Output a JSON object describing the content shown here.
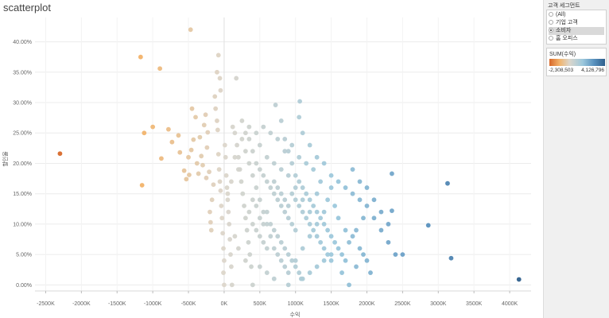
{
  "title": "scatterplot",
  "filter": {
    "title": "고객 세그먼트",
    "options": [
      {
        "label": "(All)",
        "selected": false
      },
      {
        "label": "기업 고객",
        "selected": false
      },
      {
        "label": "소비자",
        "selected": true
      },
      {
        "label": "홈 오피스",
        "selected": false
      }
    ]
  },
  "color_legend": {
    "title": "SUM(수익)",
    "min_label": "-2,308,503",
    "max_label": "4,126,796"
  },
  "chart_data": {
    "type": "scatter",
    "xlabel": "수익",
    "ylabel": "할인율",
    "xlim": [
      -2650000,
      4300000
    ],
    "ylim": [
      -0.01,
      0.44
    ],
    "x_ticks": [
      -2500,
      -2000,
      -1500,
      -1000,
      -500,
      0,
      500,
      1000,
      1500,
      2000,
      2500,
      3000,
      3500,
      4000
    ],
    "x_tick_labels": [
      "-2500K",
      "-2000K",
      "-1500K",
      "-1000K",
      "-500K",
      "0K",
      "500K",
      "1000K",
      "1500K",
      "2000K",
      "2500K",
      "3000K",
      "3500K",
      "4000K"
    ],
    "y_ticks": [
      0,
      0.05,
      0.1,
      0.15,
      0.2,
      0.25,
      0.3,
      0.35,
      0.4
    ],
    "y_tick_labels": [
      "0.00%",
      "5.00%",
      "10.00%",
      "15.00%",
      "20.00%",
      "25.00%",
      "30.00%",
      "35.00%",
      "40.00%"
    ],
    "grid": true,
    "color_scale": {
      "min": -2308503,
      "max": 4126796,
      "stops": [
        "#d8682a",
        "#f2b36a",
        "#dcd6cb",
        "#9cc8dc",
        "#5a92bf",
        "#2e5f8c"
      ]
    },
    "points": [
      [
        -2300,
        0.216
      ],
      [
        -1170,
        0.375
      ],
      [
        -900,
        0.356
      ],
      [
        -1150,
        0.164
      ],
      [
        -1120,
        0.25
      ],
      [
        -1000,
        0.26
      ],
      [
        -880,
        0.208
      ],
      [
        -780,
        0.256
      ],
      [
        -730,
        0.235
      ],
      [
        -640,
        0.246
      ],
      [
        -620,
        0.218
      ],
      [
        -560,
        0.188
      ],
      [
        -530,
        0.174
      ],
      [
        -490,
        0.181
      ],
      [
        -460,
        0.222
      ],
      [
        -430,
        0.239
      ],
      [
        -400,
        0.276
      ],
      [
        -500,
        0.21
      ],
      [
        -450,
        0.29
      ],
      [
        -380,
        0.2
      ],
      [
        -360,
        0.183
      ],
      [
        -340,
        0.243
      ],
      [
        -320,
        0.212
      ],
      [
        -300,
        0.197
      ],
      [
        -280,
        0.263
      ],
      [
        -260,
        0.28
      ],
      [
        -250,
        0.176
      ],
      [
        -240,
        0.226
      ],
      [
        -230,
        0.251
      ],
      [
        -210,
        0.186
      ],
      [
        -200,
        0.12
      ],
      [
        -190,
        0.103
      ],
      [
        -180,
        0.09
      ],
      [
        -170,
        0.14
      ],
      [
        -470,
        0.42
      ],
      [
        -150,
        0.165
      ],
      [
        -130,
        0.31
      ],
      [
        -120,
        0.29
      ],
      [
        -100,
        0.27
      ],
      [
        -90,
        0.255
      ],
      [
        -80,
        0.215
      ],
      [
        -70,
        0.19
      ],
      [
        -60,
        0.17
      ],
      [
        -50,
        0.155
      ],
      [
        -40,
        0.13
      ],
      [
        -30,
        0.11
      ],
      [
        -20,
        0.085
      ],
      [
        -10,
        0.06
      ],
      [
        0,
        0.04
      ],
      [
        -10,
        0.02
      ],
      [
        0,
        0.0
      ],
      [
        10,
        0.23
      ],
      [
        20,
        0.21
      ],
      [
        30,
        0.18
      ],
      [
        40,
        0.16
      ],
      [
        50,
        0.14
      ],
      [
        60,
        0.12
      ],
      [
        70,
        0.1
      ],
      [
        80,
        0.075
      ],
      [
        90,
        0.05
      ],
      [
        100,
        0.03
      ],
      [
        110,
        0.0
      ],
      [
        -80,
        0.378
      ],
      [
        -100,
        0.35
      ],
      [
        -60,
        0.34
      ],
      [
        170,
        0.34
      ],
      [
        -50,
        0.32
      ],
      [
        120,
        0.26
      ],
      [
        150,
        0.25
      ],
      [
        180,
        0.23
      ],
      [
        200,
        0.21
      ],
      [
        220,
        0.19
      ],
      [
        240,
        0.17
      ],
      [
        260,
        0.15
      ],
      [
        280,
        0.13
      ],
      [
        300,
        0.11
      ],
      [
        320,
        0.09
      ],
      [
        340,
        0.07
      ],
      [
        360,
        0.05
      ],
      [
        380,
        0.03
      ],
      [
        400,
        0.0
      ],
      [
        250,
        0.27
      ],
      [
        300,
        0.25
      ],
      [
        350,
        0.24
      ],
      [
        400,
        0.22
      ],
      [
        450,
        0.2
      ],
      [
        500,
        0.19
      ],
      [
        550,
        0.18
      ],
      [
        600,
        0.17
      ],
      [
        650,
        0.16
      ],
      [
        700,
        0.15
      ],
      [
        750,
        0.14
      ],
      [
        800,
        0.13
      ],
      [
        850,
        0.12
      ],
      [
        900,
        0.11
      ],
      [
        950,
        0.1
      ],
      [
        1000,
        0.09
      ],
      [
        400,
        0.18
      ],
      [
        450,
        0.16
      ],
      [
        500,
        0.14
      ],
      [
        550,
        0.12
      ],
      [
        600,
        0.1
      ],
      [
        650,
        0.08
      ],
      [
        700,
        0.06
      ],
      [
        750,
        0.05
      ],
      [
        800,
        0.04
      ],
      [
        850,
        0.03
      ],
      [
        720,
        0.296
      ],
      [
        800,
        0.27
      ],
      [
        850,
        0.24
      ],
      [
        900,
        0.22
      ],
      [
        950,
        0.2
      ],
      [
        1000,
        0.18
      ],
      [
        1050,
        0.17
      ],
      [
        1100,
        0.16
      ],
      [
        1150,
        0.15
      ],
      [
        1200,
        0.14
      ],
      [
        1250,
        0.13
      ],
      [
        1300,
        0.12
      ],
      [
        1350,
        0.11
      ],
      [
        1400,
        0.1
      ],
      [
        1450,
        0.09
      ],
      [
        1500,
        0.08
      ],
      [
        1550,
        0.07
      ],
      [
        1600,
        0.06
      ],
      [
        1650,
        0.05
      ],
      [
        1700,
        0.04
      ],
      [
        1060,
        0.302
      ],
      [
        1050,
        0.276
      ],
      [
        1100,
        0.25
      ],
      [
        1200,
        0.23
      ],
      [
        1300,
        0.21
      ],
      [
        1400,
        0.2
      ],
      [
        1500,
        0.18
      ],
      [
        1600,
        0.17
      ],
      [
        1700,
        0.16
      ],
      [
        1800,
        0.15
      ],
      [
        1900,
        0.14
      ],
      [
        2000,
        0.13
      ],
      [
        2100,
        0.11
      ],
      [
        2200,
        0.09
      ],
      [
        2300,
        0.07
      ],
      [
        2400,
        0.05
      ],
      [
        1800,
        0.19
      ],
      [
        1900,
        0.17
      ],
      [
        2000,
        0.16
      ],
      [
        2100,
        0.14
      ],
      [
        2200,
        0.12
      ],
      [
        2300,
        0.1
      ],
      [
        1950,
        0.11
      ],
      [
        1850,
        0.09
      ],
      [
        1750,
        0.07
      ],
      [
        1650,
        0.02
      ],
      [
        1750,
        0.0
      ],
      [
        2350,
        0.183
      ],
      [
        2350,
        0.122
      ],
      [
        2500,
        0.05
      ],
      [
        2860,
        0.098
      ],
      [
        3130,
        0.167
      ],
      [
        3180,
        0.044
      ],
      [
        4130,
        0.009
      ],
      [
        1080,
        0.01
      ],
      [
        1200,
        0.02
      ],
      [
        1300,
        0.03
      ],
      [
        1400,
        0.04
      ],
      [
        1500,
        0.05
      ],
      [
        900,
        0.0
      ],
      [
        700,
        0.01
      ],
      [
        600,
        0.02
      ],
      [
        500,
        0.03
      ],
      [
        300,
        0.04
      ],
      [
        200,
        0.06
      ],
      [
        150,
        0.08
      ],
      [
        900,
        0.02
      ],
      [
        1000,
        0.04
      ],
      [
        1100,
        0.06
      ],
      [
        1200,
        0.08
      ],
      [
        1300,
        0.1
      ],
      [
        1400,
        0.12
      ],
      [
        1450,
        0.14
      ],
      [
        1500,
        0.16
      ],
      [
        1550,
        0.13
      ],
      [
        1600,
        0.11
      ],
      [
        1700,
        0.09
      ],
      [
        1800,
        0.08
      ],
      [
        1900,
        0.06
      ],
      [
        2000,
        0.04
      ],
      [
        2050,
        0.02
      ],
      [
        1950,
        0.05
      ],
      [
        1850,
        0.03
      ],
      [
        350,
        0.2
      ],
      [
        300,
        0.22
      ],
      [
        250,
        0.24
      ],
      [
        200,
        0.19
      ],
      [
        150,
        0.21
      ],
      [
        100,
        0.17
      ],
      [
        50,
        0.15
      ],
      [
        500,
        0.23
      ],
      [
        600,
        0.21
      ],
      [
        700,
        0.2
      ],
      [
        800,
        0.19
      ],
      [
        900,
        0.18
      ],
      [
        1000,
        0.16
      ],
      [
        1100,
        0.14
      ],
      [
        1200,
        0.12
      ],
      [
        1300,
        0.15
      ],
      [
        1350,
        0.17
      ],
      [
        1250,
        0.19
      ],
      [
        1150,
        0.2
      ],
      [
        1050,
        0.21
      ],
      [
        950,
        0.23
      ],
      [
        850,
        0.22
      ],
      [
        750,
        0.24
      ],
      [
        650,
        0.25
      ],
      [
        550,
        0.26
      ],
      [
        450,
        0.25
      ],
      [
        350,
        0.26
      ],
      [
        600,
        0.12
      ],
      [
        650,
        0.1
      ],
      [
        700,
        0.09
      ],
      [
        750,
        0.08
      ],
      [
        800,
        0.07
      ],
      [
        850,
        0.06
      ],
      [
        900,
        0.05
      ],
      [
        950,
        0.04
      ],
      [
        1000,
        0.03
      ],
      [
        1050,
        0.02
      ],
      [
        1100,
        0.01
      ],
      [
        400,
        0.1
      ],
      [
        450,
        0.09
      ],
      [
        500,
        0.08
      ],
      [
        550,
        0.07
      ],
      [
        600,
        0.06
      ],
      [
        450,
        0.13
      ],
      [
        500,
        0.11
      ],
      [
        550,
        0.1
      ],
      [
        350,
        0.12
      ],
      [
        400,
        0.14
      ],
      [
        700,
        0.17
      ],
      [
        750,
        0.16
      ],
      [
        800,
        0.15
      ],
      [
        850,
        0.14
      ],
      [
        900,
        0.13
      ],
      [
        950,
        0.15
      ],
      [
        1000,
        0.14
      ],
      [
        1050,
        0.13
      ],
      [
        1100,
        0.12
      ],
      [
        1150,
        0.11
      ],
      [
        1200,
        0.1
      ],
      [
        1250,
        0.09
      ],
      [
        1300,
        0.08
      ],
      [
        1350,
        0.07
      ],
      [
        1400,
        0.06
      ],
      [
        1450,
        0.05
      ],
      [
        1500,
        0.04
      ]
    ]
  }
}
